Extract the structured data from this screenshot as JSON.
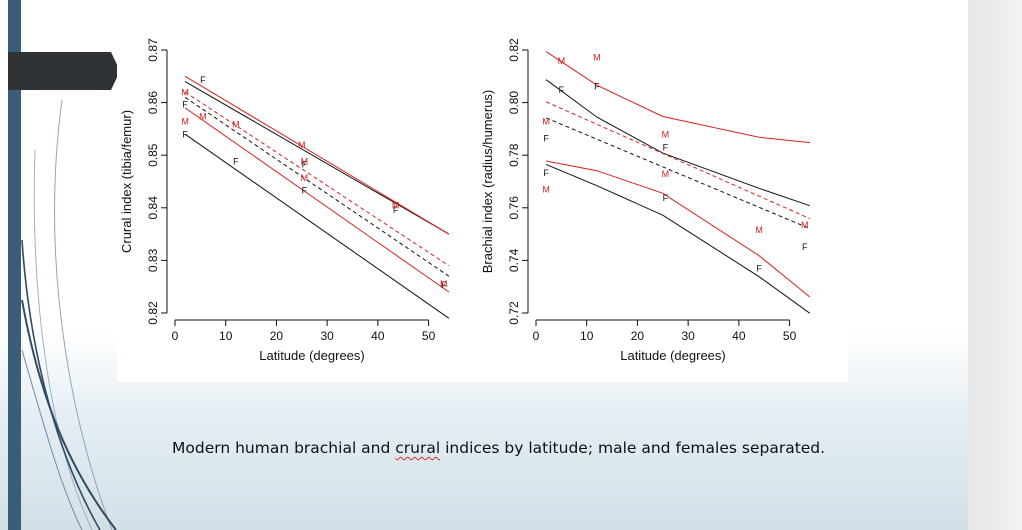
{
  "caption": {
    "before": "Modern human brachial and ",
    "underlined": "crural",
    "after": " indices by latitude; male and females separated."
  },
  "colors": {
    "female": "#111111",
    "male": "#d8211e",
    "accent_bar": "#3a5d7a",
    "tab": "#303336"
  },
  "chart_data": [
    {
      "type": "line",
      "title": "",
      "xlabel": "Latitude (degrees)",
      "ylabel": "Crural index (tibia/femur)",
      "xlim": [
        0,
        56
      ],
      "ylim": [
        0.82,
        0.87
      ],
      "x_ticks": [
        0,
        10,
        20,
        30,
        40,
        50
      ],
      "y_ticks": [
        0.82,
        0.83,
        0.84,
        0.85,
        0.86,
        0.87
      ],
      "y_tick_labels": [
        "0.82",
        "0.83",
        "0.84",
        "0.85",
        "0.86",
        "0.87"
      ],
      "series": [
        {
          "kind": "female-upper-bound",
          "color": "female",
          "x": [
            2,
            54
          ],
          "y": [
            0.864,
            0.835
          ]
        },
        {
          "kind": "female-lower-bound",
          "color": "female",
          "x": [
            2,
            54
          ],
          "y": [
            0.854,
            0.819
          ]
        },
        {
          "kind": "female-fit",
          "color": "female",
          "dashed": true,
          "x": [
            2,
            54
          ],
          "y": [
            0.861,
            0.827
          ]
        },
        {
          "kind": "male-upper-bound",
          "color": "male",
          "x": [
            2,
            54
          ],
          "y": [
            0.865,
            0.835
          ]
        },
        {
          "kind": "male-lower-bound",
          "color": "male",
          "x": [
            2,
            54
          ],
          "y": [
            0.859,
            0.824
          ]
        },
        {
          "kind": "male-fit",
          "color": "male",
          "dashed": true,
          "x": [
            2,
            54
          ],
          "y": [
            0.862,
            0.829
          ]
        }
      ],
      "points": [
        {
          "label": "F",
          "group": "female",
          "x": 5.5,
          "y": 0.8643
        },
        {
          "label": "F",
          "group": "female",
          "x": 2,
          "y": 0.8596
        },
        {
          "label": "F",
          "group": "female",
          "x": 2,
          "y": 0.8539
        },
        {
          "label": "F",
          "group": "female",
          "x": 12,
          "y": 0.8488
        },
        {
          "label": "F",
          "group": "female",
          "x": 25.5,
          "y": 0.8482
        },
        {
          "label": "F",
          "group": "female",
          "x": 25.5,
          "y": 0.8433
        },
        {
          "label": "F",
          "group": "female",
          "x": 43.5,
          "y": 0.8396
        },
        {
          "label": "F",
          "group": "female",
          "x": 53,
          "y": 0.8253
        },
        {
          "label": "M",
          "group": "male",
          "x": 2,
          "y": 0.8619
        },
        {
          "label": "M",
          "group": "male",
          "x": 5.5,
          "y": 0.8574
        },
        {
          "label": "M",
          "group": "male",
          "x": 2,
          "y": 0.8564
        },
        {
          "label": "M",
          "group": "male",
          "x": 12,
          "y": 0.8558
        },
        {
          "label": "M",
          "group": "male",
          "x": 25,
          "y": 0.8519
        },
        {
          "label": "M",
          "group": "male",
          "x": 25.5,
          "y": 0.8457
        },
        {
          "label": "M",
          "group": "male",
          "x": 25.5,
          "y": 0.8488
        },
        {
          "label": "M",
          "group": "male",
          "x": 43.5,
          "y": 0.8404
        },
        {
          "label": "M",
          "group": "male",
          "x": 53,
          "y": 0.8255
        }
      ]
    },
    {
      "type": "line",
      "title": "",
      "xlabel": "Latitude (degrees)",
      "ylabel": "Brachial index (radius/humerus)",
      "xlim": [
        0,
        56
      ],
      "ylim": [
        0.72,
        0.82
      ],
      "x_ticks": [
        0,
        10,
        20,
        30,
        40,
        50
      ],
      "y_ticks": [
        0.72,
        0.74,
        0.76,
        0.78,
        0.8,
        0.82
      ],
      "y_tick_labels": [
        "0.72",
        "0.74",
        "0.76",
        "0.78",
        "0.80",
        "0.82"
      ],
      "series": [
        {
          "kind": "female-upper-bound",
          "color": "female",
          "x": [
            2,
            12,
            25,
            44,
            54
          ],
          "y": [
            0.8087,
            0.7945,
            0.7808,
            0.7674,
            0.7608
          ]
        },
        {
          "kind": "female-lower-bound",
          "color": "female",
          "x": [
            2,
            12,
            25,
            44,
            54
          ],
          "y": [
            0.7765,
            0.7684,
            0.7572,
            0.7338,
            0.7199
          ]
        },
        {
          "kind": "female-fit",
          "color": "female",
          "dashed": true,
          "x": [
            2,
            54
          ],
          "y": [
            0.7942,
            0.7521
          ]
        },
        {
          "kind": "male-upper-bound",
          "color": "male",
          "x": [
            2,
            12,
            25,
            44,
            54
          ],
          "y": [
            0.8194,
            0.8066,
            0.7947,
            0.7868,
            0.7848
          ]
        },
        {
          "kind": "male-lower-bound",
          "color": "male",
          "x": [
            2,
            12,
            25,
            44,
            54
          ],
          "y": [
            0.7778,
            0.7741,
            0.7655,
            0.7418,
            0.7261
          ]
        },
        {
          "kind": "male-fit",
          "color": "male",
          "dashed": true,
          "x": [
            2,
            54
          ],
          "y": [
            0.8003,
            0.7559
          ]
        }
      ],
      "points": [
        {
          "label": "F",
          "group": "female",
          "x": 5,
          "y": 0.8048
        },
        {
          "label": "F",
          "group": "female",
          "x": 12,
          "y": 0.8062
        },
        {
          "label": "F",
          "group": "female",
          "x": 2,
          "y": 0.7864
        },
        {
          "label": "F",
          "group": "female",
          "x": 2,
          "y": 0.7733
        },
        {
          "label": "F",
          "group": "female",
          "x": 25.5,
          "y": 0.7829
        },
        {
          "label": "F",
          "group": "female",
          "x": 25.5,
          "y": 0.7637
        },
        {
          "label": "F",
          "group": "female",
          "x": 44,
          "y": 0.7369
        },
        {
          "label": "F",
          "group": "female",
          "x": 53,
          "y": 0.7451
        },
        {
          "label": "M",
          "group": "male",
          "x": 5,
          "y": 0.8158
        },
        {
          "label": "M",
          "group": "male",
          "x": 12,
          "y": 0.8171
        },
        {
          "label": "M",
          "group": "male",
          "x": 2,
          "y": 0.7929
        },
        {
          "label": "M",
          "group": "male",
          "x": 25.5,
          "y": 0.7878
        },
        {
          "label": "M",
          "group": "male",
          "x": 25.5,
          "y": 0.7729
        },
        {
          "label": "M",
          "group": "male",
          "x": 2,
          "y": 0.7669
        },
        {
          "label": "M",
          "group": "male",
          "x": 44,
          "y": 0.7516
        },
        {
          "label": "M",
          "group": "male",
          "x": 53,
          "y": 0.7535
        }
      ]
    }
  ]
}
